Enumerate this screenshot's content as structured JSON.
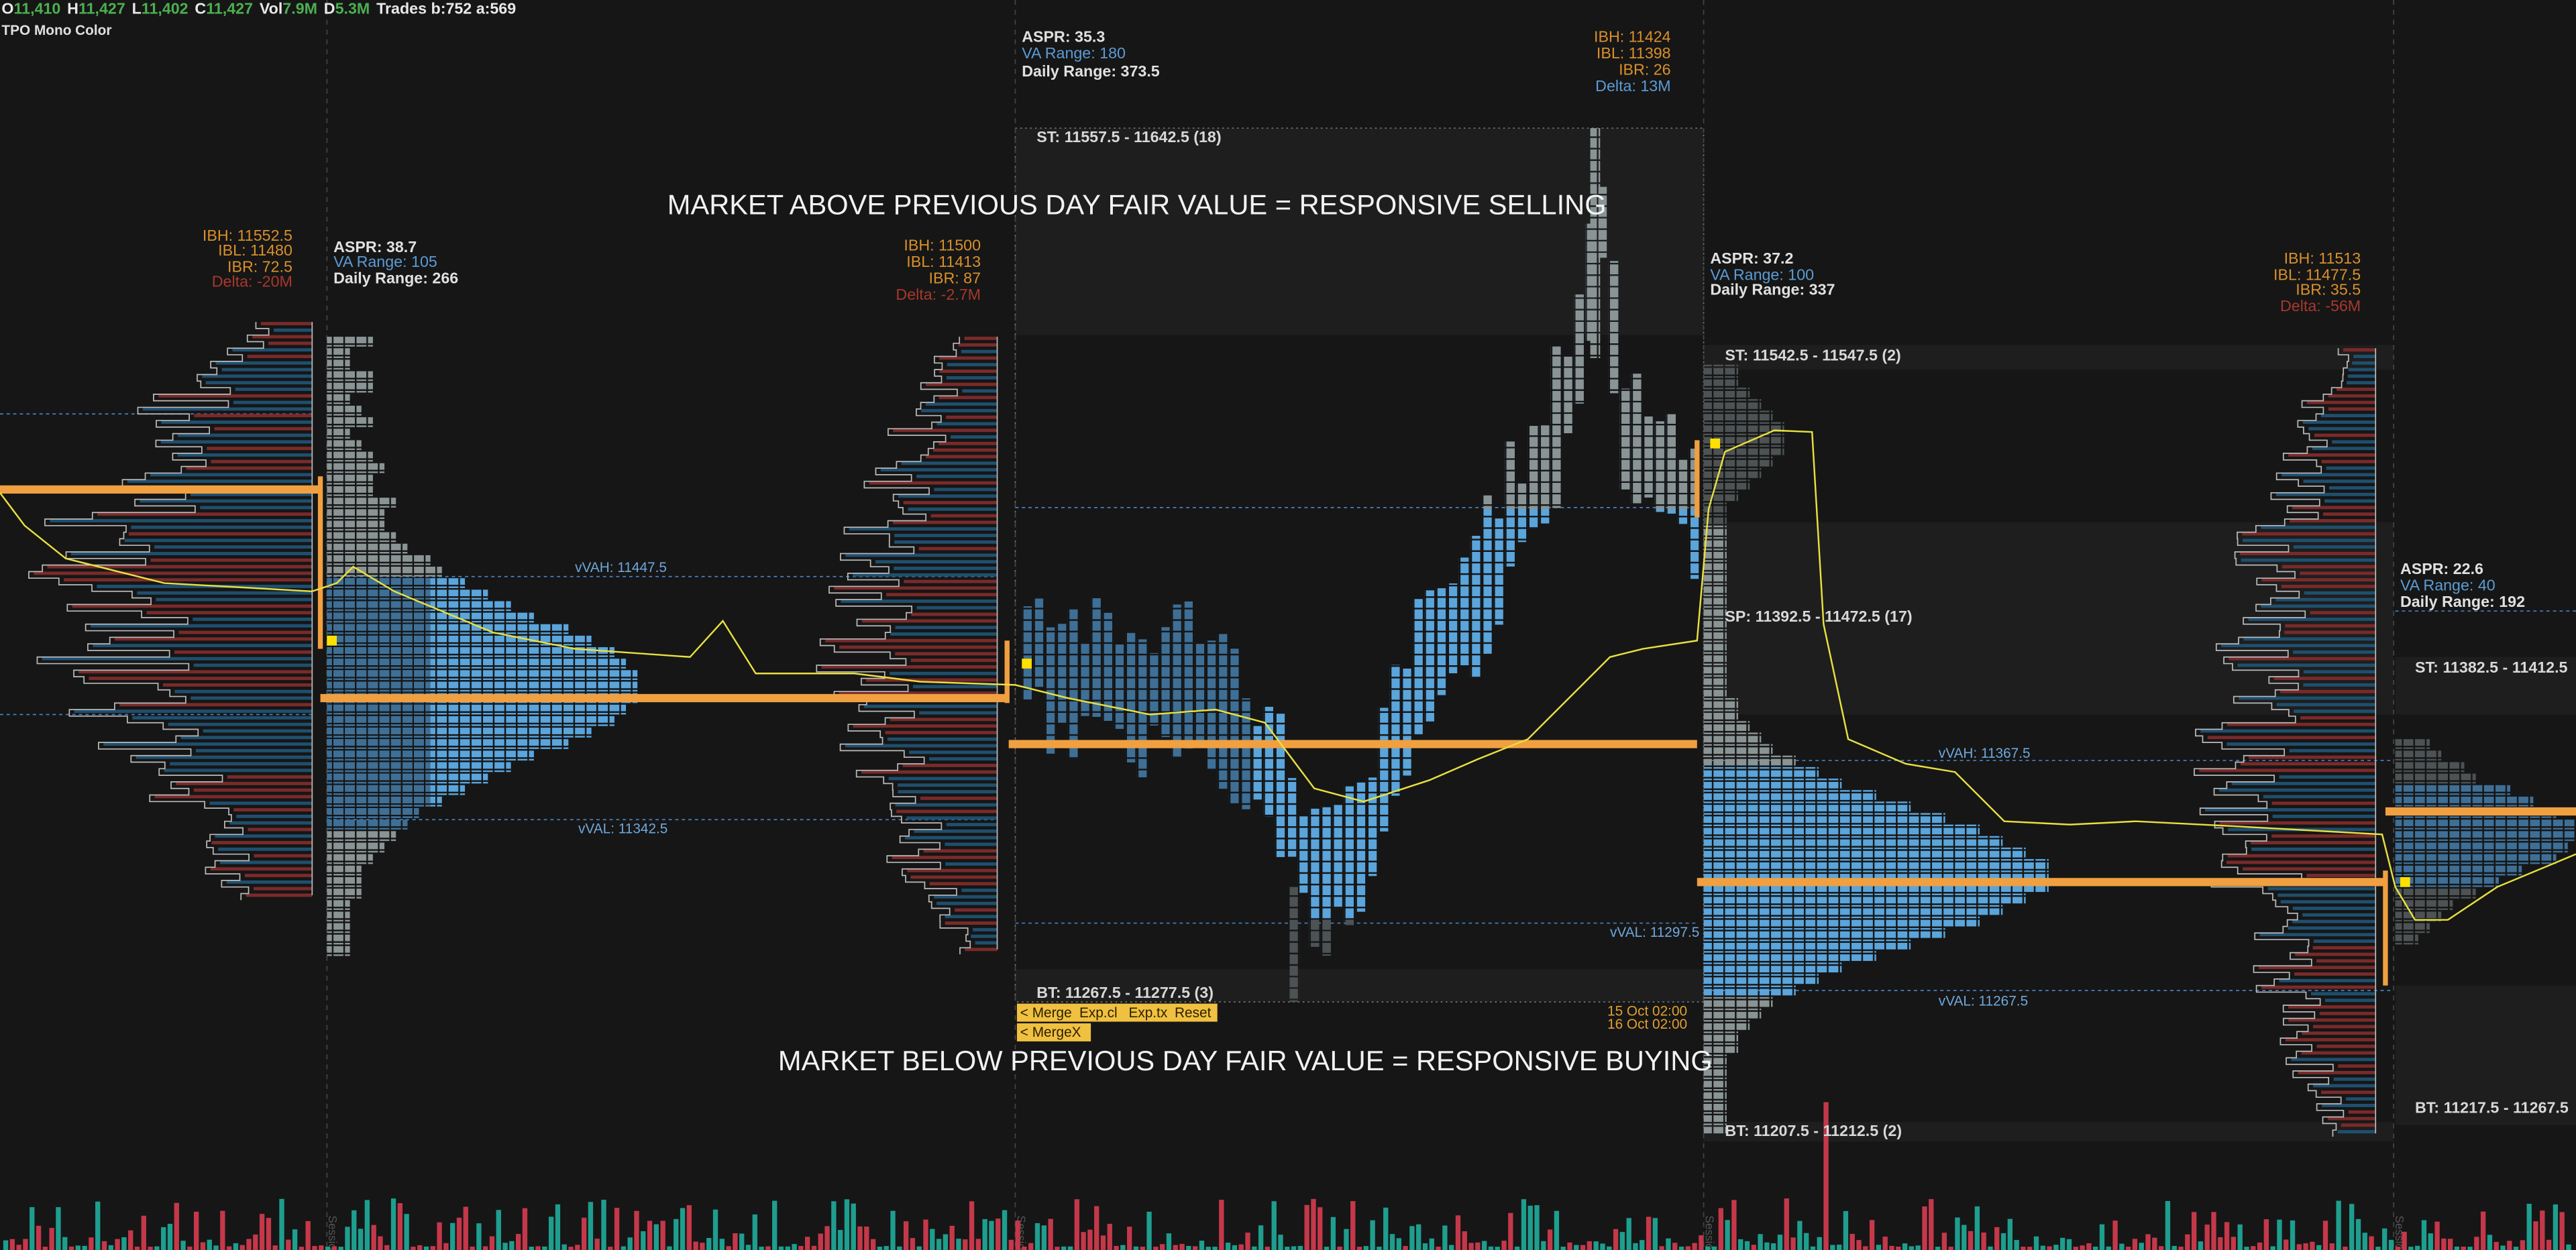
{
  "header": {
    "ohlc": [
      {
        "label": "O",
        "value": "11,410"
      },
      {
        "label": "H",
        "value": "11,427"
      },
      {
        "label": "L",
        "value": "11,402"
      },
      {
        "label": "C",
        "value": "11,427"
      },
      {
        "label": "Vol",
        "value": "7.9M"
      },
      {
        "label": "D",
        "value": "5.3M"
      }
    ],
    "trades": "Trades b:752 a:569",
    "indicator": "TPO Mono Color"
  },
  "annotations": [
    "MARKET ABOVE PREVIOUS DAY FAIR VALUE = RESPONSIVE SELLING",
    "MARKET BELOW PREVIOUS DAY FAIR VALUE = RESPONSIVE BUYING"
  ],
  "session_label": "Session",
  "sessions": [
    {
      "ib": [
        "IBH: 11552.5",
        "IBL: 11480",
        "IBR: 72.5",
        "Delta: -20M"
      ]
    },
    {
      "stats": [
        "ASPR: 38.7",
        "VA Range: 105",
        "Daily Range: 266"
      ],
      "ib": [
        "IBH: 11500",
        "IBL: 11413",
        "IBR: 87",
        "Delta: -2.7M"
      ],
      "vvah": "vVAH: 11447.5",
      "vval": "vVAL: 11342.5"
    },
    {
      "stats": [
        "ASPR: 35.3",
        "VA Range: 180",
        "Daily Range: 373.5"
      ],
      "ib": [
        "IBH: 11424",
        "IBL: 11398",
        "IBR: 26",
        "Delta: 13M"
      ],
      "st": "ST: 11557.5 - 11642.5 (18)",
      "bt": "BT: 11267.5 - 11277.5 (3)",
      "vval": "vVAL: 11297.5",
      "dates": [
        "15 Oct 02:00",
        "16 Oct 02:00"
      ]
    },
    {
      "stats": [
        "ASPR: 37.2",
        "VA Range: 100",
        "Daily Range: 337"
      ],
      "ib": [
        "IBH: 11513",
        "IBL: 11477.5",
        "IBR: 35.5",
        "Delta: -56M"
      ],
      "st": "ST: 11542.5 - 11547.5 (2)",
      "sp": "SP: 11392.5 - 11472.5 (17)",
      "bt": "BT: 11207.5 - 11212.5 (2)",
      "vvah": "vVAH: 11367.5",
      "vval": "vVAL: 11267.5"
    },
    {
      "stats": [
        "ASPR: 22.6",
        "VA Range: 40",
        "Daily Range: 192"
      ],
      "st": "ST: 11382.5 - 11412.5",
      "bt": "BT: 11217.5 - 11267.5"
    }
  ],
  "toolbar": {
    "buttons": [
      "< Merge",
      "Exp.cl",
      "Exp.tx",
      "Reset"
    ],
    "second": "< MergeX"
  }
}
